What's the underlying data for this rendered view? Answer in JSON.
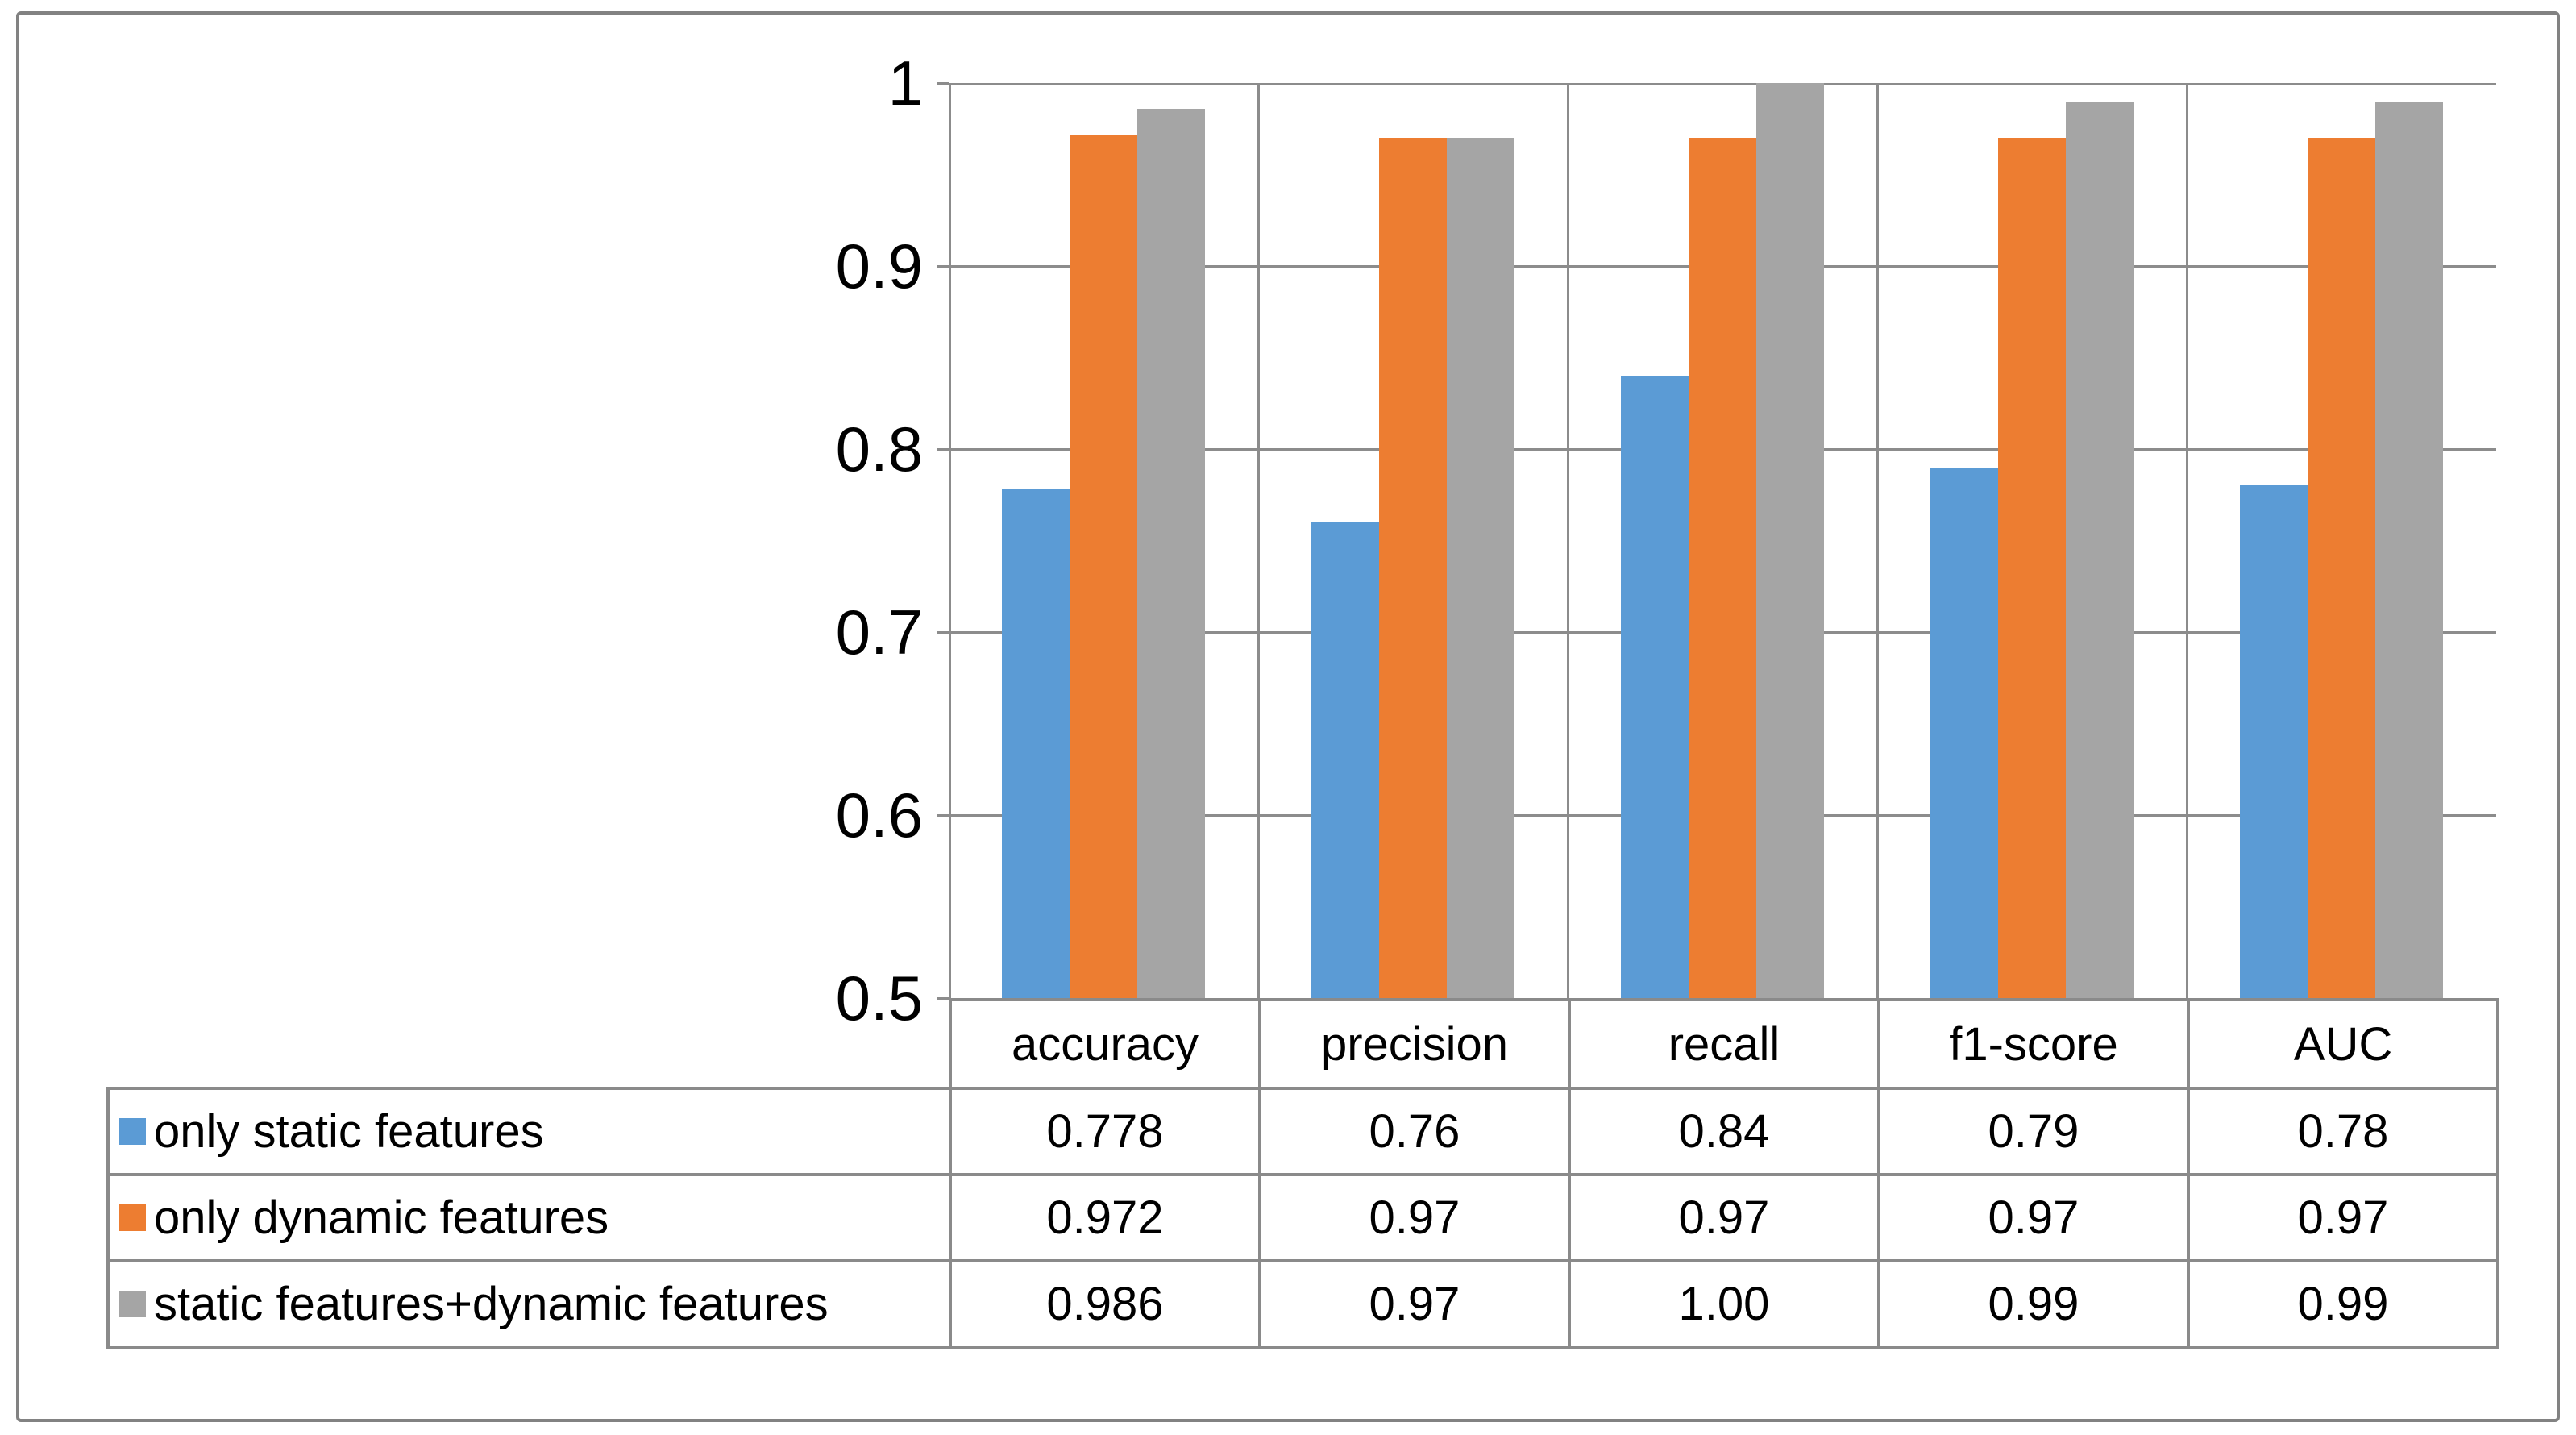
{
  "chart_data": {
    "type": "bar",
    "title": "",
    "categories": [
      "accuracy",
      "precision",
      "recall",
      "f1-score",
      "AUC"
    ],
    "series": [
      {
        "name": "only static features",
        "color": "#5B9BD5",
        "values": [
          0.778,
          0.76,
          0.84,
          0.79,
          0.78
        ],
        "labels": [
          "0.778",
          "0.76",
          "0.84",
          "0.79",
          "0.78"
        ]
      },
      {
        "name": "only dynamic features",
        "color": "#ED7D31",
        "values": [
          0.972,
          0.97,
          0.97,
          0.97,
          0.97
        ],
        "labels": [
          "0.972",
          "0.97",
          "0.97",
          "0.97",
          "0.97"
        ]
      },
      {
        "name": "static features+dynamic features",
        "color": "#A5A5A5",
        "values": [
          0.986,
          0.97,
          1.0,
          0.99,
          0.99
        ],
        "labels": [
          "0.986",
          "0.97",
          "1.00",
          "0.99",
          "0.99"
        ]
      }
    ],
    "ylim": [
      0.5,
      1.0
    ],
    "y_ticks": [
      "1",
      "0.9",
      "0.8",
      "0.7",
      "0.6",
      "0.5"
    ],
    "y_tick_values": [
      1.0,
      0.9,
      0.8,
      0.7,
      0.6,
      0.5
    ],
    "grid": true,
    "gridlines": "horizontal-and-vertical-category-boundaries",
    "legend_position": "table-left-column",
    "xlabel": "",
    "ylabel": ""
  },
  "colors": {
    "grid": "#8c8c8c",
    "table_border": "#8a8a8a",
    "frame_border": "#828282",
    "text": "#000000",
    "background": "#ffffff"
  }
}
